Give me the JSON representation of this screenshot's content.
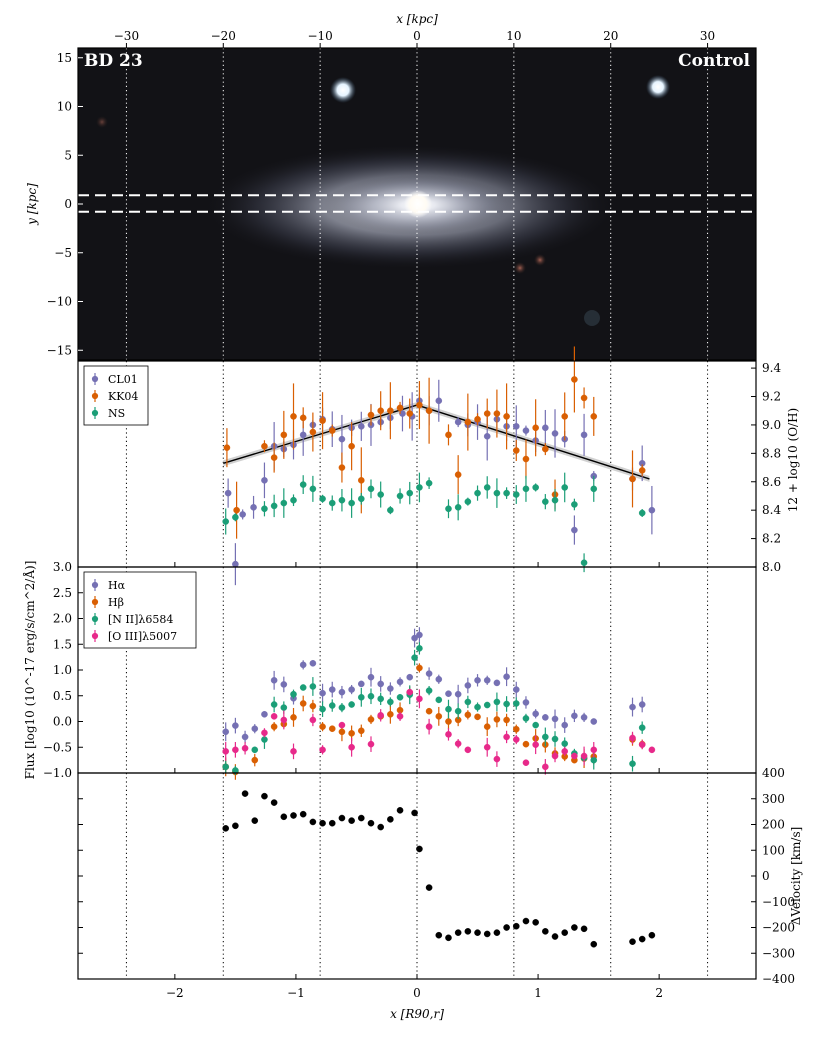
{
  "chart_data": [
    {
      "panel": "image",
      "type": "scatter",
      "label_left": "BD 23",
      "label_right": "Control",
      "top_axis_label": "x [kpc]",
      "top_ticks": [
        -30,
        -20,
        -10,
        0,
        10,
        20,
        30
      ],
      "ylabel": "y [kpc]",
      "yticks": [
        15,
        10,
        5,
        0,
        -5,
        -10,
        -15
      ],
      "xlim_kpc": [
        -35,
        35
      ],
      "ylim_kpc": [
        -16,
        16
      ],
      "slit_y_kpc": [
        0.9,
        -0.8
      ]
    },
    {
      "panel": "metallicity",
      "type": "scatter",
      "ylabel": "12 + log10 (O/H)",
      "ylim": [
        8.0,
        9.45
      ],
      "yticks_right": [
        "9.4",
        "9.2",
        "9.0",
        "8.8",
        "8.6",
        "8.4",
        "8.2",
        "8.0"
      ],
      "series": [
        {
          "name": "CL01",
          "color": "#7570b3",
          "x": [
            -1.56,
            -1.5,
            -1.44,
            -1.35,
            -1.26,
            -1.18,
            -1.1,
            -1.02,
            -0.94,
            -0.86,
            -0.78,
            -0.7,
            -0.62,
            -0.54,
            -0.46,
            -0.38,
            -0.3,
            -0.22,
            -0.12,
            -0.04,
            0.02,
            0.1,
            0.18,
            0.34,
            0.42,
            0.5,
            0.58,
            0.66,
            0.74,
            0.82,
            0.9,
            0.98,
            1.06,
            1.14,
            1.22,
            1.3,
            1.38,
            1.46,
            1.78,
            1.86,
            1.94
          ],
          "y": [
            8.52,
            8.02,
            8.37,
            8.42,
            8.61,
            8.85,
            8.83,
            8.86,
            8.93,
            9.0,
            9.04,
            8.97,
            8.9,
            8.98,
            8.99,
            9.0,
            9.02,
            9.05,
            9.08,
            9.06,
            9.17,
            9.1,
            9.17,
            9.02,
            9.0,
            9.02,
            8.92,
            9.04,
            8.99,
            8.99,
            8.96,
            8.89,
            8.98,
            8.94,
            8.9,
            8.26,
            8.93,
            8.64,
            8.62,
            8.73,
            8.4
          ]
        },
        {
          "name": "KK04",
          "color": "#d95f02",
          "x": [
            -1.57,
            -1.49,
            -1.26,
            -1.18,
            -1.1,
            -1.02,
            -0.94,
            -0.86,
            -0.78,
            -0.7,
            -0.62,
            -0.54,
            -0.46,
            -0.38,
            -0.3,
            -0.22,
            -0.14,
            -0.06,
            0.02,
            0.1,
            0.26,
            0.34,
            0.42,
            0.5,
            0.58,
            0.66,
            0.74,
            0.82,
            0.9,
            0.98,
            1.06,
            1.14,
            1.22,
            1.3,
            1.38,
            1.46,
            1.78,
            1.86
          ],
          "y": [
            8.84,
            8.4,
            8.85,
            8.77,
            8.93,
            9.06,
            9.05,
            8.95,
            9.03,
            8.96,
            8.7,
            8.85,
            8.61,
            9.07,
            9.1,
            9.1,
            9.12,
            9.08,
            9.14,
            9.1,
            8.93,
            8.65,
            9.02,
            9.04,
            9.08,
            9.08,
            9.06,
            8.82,
            8.76,
            8.98,
            8.83,
            8.51,
            9.06,
            9.32,
            9.19,
            9.06,
            8.62,
            8.68
          ]
        },
        {
          "name": "NS",
          "color": "#1b9e77",
          "x": [
            -1.58,
            -1.5,
            -1.26,
            -1.18,
            -1.1,
            -1.02,
            -0.94,
            -0.86,
            -0.78,
            -0.7,
            -0.62,
            -0.54,
            -0.46,
            -0.38,
            -0.3,
            -0.22,
            -0.14,
            -0.06,
            0.02,
            0.1,
            0.26,
            0.34,
            0.42,
            0.5,
            0.58,
            0.66,
            0.74,
            0.82,
            0.9,
            0.98,
            1.06,
            1.14,
            1.22,
            1.3,
            1.38,
            1.46,
            1.86
          ],
          "y": [
            8.32,
            8.35,
            8.41,
            8.43,
            8.45,
            8.47,
            8.58,
            8.55,
            8.48,
            8.45,
            8.47,
            8.45,
            8.48,
            8.55,
            8.51,
            8.4,
            8.5,
            8.52,
            8.56,
            8.59,
            8.41,
            8.42,
            8.46,
            8.52,
            8.56,
            8.52,
            8.52,
            8.51,
            8.55,
            8.56,
            8.46,
            8.47,
            8.56,
            8.44,
            8.03,
            8.55,
            8.38
          ]
        }
      ],
      "fit_line": {
        "x": [
          -1.6,
          0.0,
          1.92
        ],
        "y": [
          8.73,
          9.14,
          8.62
        ]
      }
    },
    {
      "panel": "flux",
      "type": "scatter",
      "ylabel": "Flux [log10 (10^-17 erg/s/cm^2/Å)]",
      "ylim": [
        -1.0,
        3.0
      ],
      "yticks": [
        "3.0",
        "2.5",
        "2.0",
        "1.5",
        "1.0",
        "0.5",
        "0.0",
        "-0.5",
        "-1.0"
      ],
      "series": [
        {
          "name": "Hα",
          "color": "#7570b3",
          "x": [
            -1.58,
            -1.5,
            -1.42,
            -1.34,
            -1.26,
            -1.18,
            -1.1,
            -1.02,
            -0.94,
            -0.86,
            -0.78,
            -0.7,
            -0.62,
            -0.54,
            -0.46,
            -0.38,
            -0.3,
            -0.22,
            -0.14,
            -0.06,
            -0.02,
            0.02,
            0.1,
            0.18,
            0.26,
            0.34,
            0.42,
            0.5,
            0.58,
            0.66,
            0.74,
            0.82,
            0.9,
            0.98,
            1.06,
            1.14,
            1.22,
            1.3,
            1.38,
            1.46,
            1.78,
            1.86
          ],
          "y": [
            -0.2,
            -0.08,
            -0.3,
            -0.14,
            0.14,
            0.8,
            0.72,
            0.45,
            1.1,
            1.13,
            0.55,
            0.62,
            0.57,
            0.62,
            0.73,
            0.86,
            0.73,
            0.64,
            0.77,
            0.86,
            1.62,
            1.68,
            0.93,
            0.82,
            0.54,
            0.53,
            0.7,
            0.8,
            0.8,
            0.75,
            0.87,
            0.62,
            0.37,
            0.15,
            0.08,
            0.05,
            -0.07,
            0.11,
            0.08,
            0.0,
            0.28,
            0.33
          ]
        },
        {
          "name": "Hβ",
          "color": "#d95f02",
          "x": [
            -1.58,
            -1.5,
            -1.34,
            -1.18,
            -1.1,
            -1.02,
            -0.94,
            -0.86,
            -0.78,
            -0.7,
            -0.62,
            -0.54,
            -0.46,
            -0.38,
            -0.3,
            -0.22,
            -0.14,
            -0.06,
            0.02,
            0.1,
            0.18,
            0.26,
            0.34,
            0.42,
            0.5,
            0.58,
            0.66,
            0.74,
            0.82,
            0.9,
            0.98,
            1.06,
            1.14,
            1.22,
            1.3,
            1.38,
            1.46,
            1.78,
            1.86
          ],
          "y": [
            -0.88,
            -0.98,
            -0.75,
            -0.1,
            -0.05,
            0.08,
            0.35,
            0.3,
            -0.1,
            -0.14,
            -0.2,
            -0.23,
            -0.18,
            0.04,
            0.1,
            0.14,
            0.22,
            0.56,
            1.04,
            0.2,
            0.1,
            0.0,
            0.03,
            0.13,
            0.09,
            -0.1,
            0.04,
            0.03,
            -0.15,
            -0.44,
            -0.33,
            -0.45,
            -0.62,
            -0.68,
            -0.75,
            -0.72,
            -0.68,
            -0.35,
            -0.44
          ]
        },
        {
          "name": "[N II]λ6584",
          "color": "#1b9e77",
          "x": [
            -1.58,
            -1.5,
            -1.34,
            -1.26,
            -1.18,
            -1.1,
            -1.02,
            -0.94,
            -0.86,
            -0.78,
            -0.7,
            -0.62,
            -0.54,
            -0.46,
            -0.38,
            -0.3,
            -0.22,
            -0.14,
            -0.06,
            -0.02,
            0.02,
            0.1,
            0.18,
            0.26,
            0.34,
            0.42,
            0.5,
            0.58,
            0.66,
            0.74,
            0.82,
            0.9,
            0.98,
            1.06,
            1.14,
            1.22,
            1.3,
            1.38,
            1.46,
            1.78,
            1.86
          ],
          "y": [
            -0.88,
            -0.95,
            -0.55,
            -0.35,
            0.33,
            0.27,
            0.53,
            0.66,
            0.68,
            0.24,
            0.31,
            0.27,
            0.33,
            0.47,
            0.49,
            0.44,
            0.38,
            0.47,
            0.52,
            1.24,
            1.42,
            0.6,
            0.42,
            0.24,
            0.2,
            0.38,
            0.28,
            0.32,
            0.38,
            0.34,
            0.35,
            0.06,
            -0.07,
            -0.3,
            -0.34,
            -0.43,
            -0.62,
            -0.71,
            -0.75,
            -0.82,
            -0.12
          ]
        },
        {
          "name": "[O III]λ5007",
          "color": "#e7298a",
          "x": [
            -1.58,
            -1.5,
            -1.42,
            -1.26,
            -1.18,
            -1.1,
            -1.02,
            -0.86,
            -0.78,
            -0.62,
            -0.54,
            -0.38,
            -0.3,
            -0.14,
            -0.06,
            0.02,
            0.1,
            0.26,
            0.34,
            0.42,
            0.58,
            0.66,
            0.74,
            0.82,
            0.9,
            0.98,
            1.06,
            1.14,
            1.22,
            1.3,
            1.38,
            1.46,
            1.78,
            1.86,
            1.94
          ],
          "y": [
            -0.58,
            -0.55,
            -0.52,
            -0.22,
            0.1,
            0.03,
            -0.58,
            0.03,
            -0.55,
            -0.07,
            -0.5,
            -0.44,
            0.12,
            0.1,
            0.57,
            0.44,
            -0.1,
            -0.25,
            -0.43,
            -0.55,
            -0.5,
            -0.73,
            -0.3,
            -0.35,
            -0.8,
            -0.45,
            -0.88,
            -0.67,
            -0.58,
            -0.67,
            -0.67,
            -0.55,
            -0.32,
            -0.45,
            -0.55
          ]
        }
      ]
    },
    {
      "panel": "velocity",
      "type": "scatter",
      "ylabel": "ΔVelocity [km/s]",
      "ylim": [
        -400,
        400
      ],
      "yticks_right": [
        "400",
        "300",
        "200",
        "100",
        "0",
        "-100",
        "-200",
        "-300",
        "-400"
      ],
      "xlabel": "x [R90,r]",
      "xticks": [
        "-2",
        "-1",
        "0",
        "1",
        "2"
      ],
      "xlim": [
        -2.8,
        2.8
      ],
      "vlines_R90": [
        -2.4,
        -1.6,
        -0.8,
        0.0,
        0.8,
        1.6,
        2.4
      ],
      "series": [
        {
          "name": "",
          "color": "#000000",
          "x": [
            -1.58,
            -1.5,
            -1.42,
            -1.34,
            -1.26,
            -1.18,
            -1.1,
            -1.02,
            -0.94,
            -0.86,
            -0.78,
            -0.7,
            -0.62,
            -0.54,
            -0.46,
            -0.38,
            -0.3,
            -0.22,
            -0.14,
            -0.02,
            0.02,
            0.1,
            0.18,
            0.26,
            0.34,
            0.42,
            0.5,
            0.58,
            0.66,
            0.74,
            0.82,
            0.9,
            0.98,
            1.06,
            1.14,
            1.22,
            1.3,
            1.38,
            1.46,
            1.78,
            1.86,
            1.94
          ],
          "y": [
            185,
            195,
            320,
            215,
            310,
            285,
            230,
            235,
            240,
            210,
            205,
            205,
            225,
            215,
            225,
            205,
            190,
            220,
            255,
            245,
            105,
            -45,
            -230,
            -240,
            -220,
            -215,
            -220,
            -225,
            -220,
            -200,
            -195,
            -175,
            -180,
            -215,
            -235,
            -220,
            -200,
            -205,
            -265,
            -255,
            -245,
            -230
          ]
        }
      ]
    }
  ]
}
